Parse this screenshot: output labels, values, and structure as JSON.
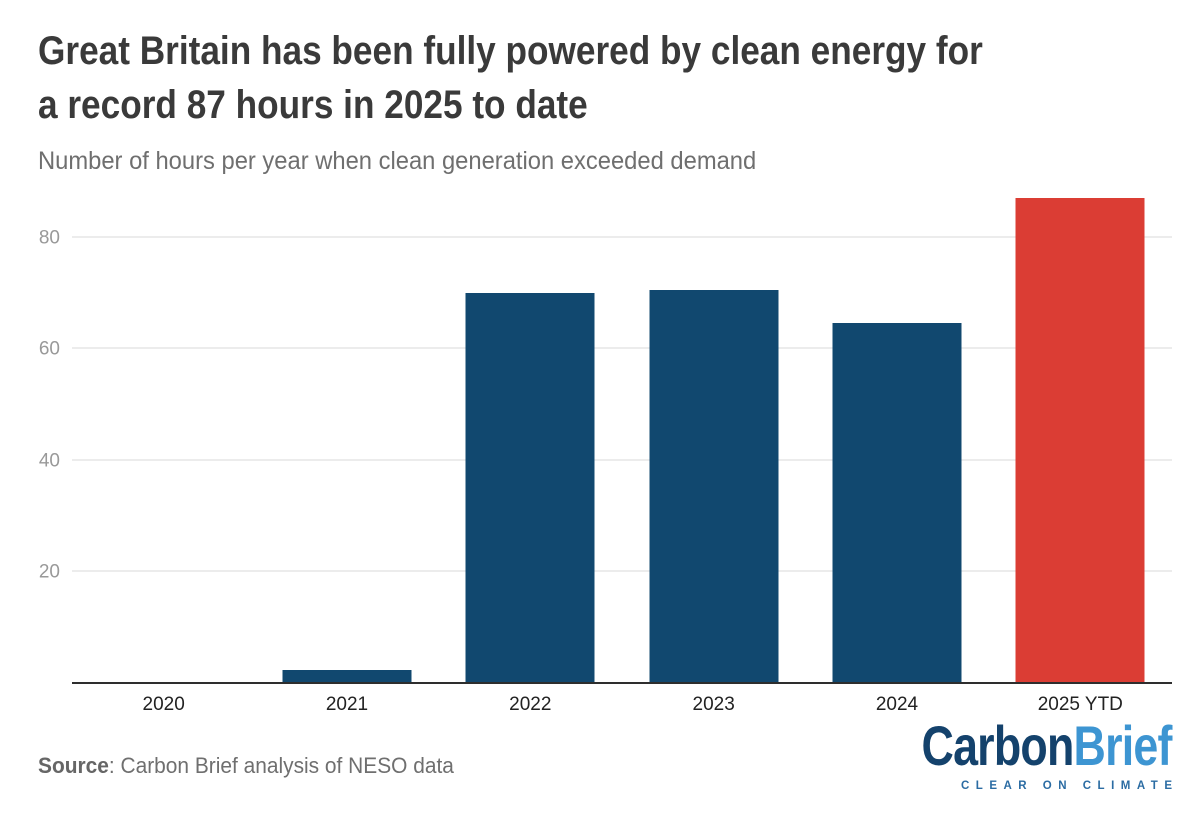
{
  "header": {
    "title_line1": "Great Britain has been fully powered by clean energy for",
    "title_line2": "a record 87 hours in 2025 to date",
    "subtitle": "Number of hours per year when clean generation exceeded demand"
  },
  "chart_data": {
    "type": "bar",
    "title": "Great Britain has been fully powered by clean energy for a record 87 hours in 2025 to date",
    "subtitle": "Number of hours per year when clean generation exceeded demand",
    "categories": [
      "2020",
      "2021",
      "2022",
      "2023",
      "2024",
      "2025 YTD"
    ],
    "values": [
      0,
      2.4,
      70,
      70.5,
      64.5,
      87
    ],
    "unit": "hours",
    "xlabel": "",
    "ylabel": "",
    "ylim": [
      0,
      87.5
    ],
    "yticks": [
      20,
      40,
      60,
      80
    ],
    "grid": "horizontal gridlines at y ticks, no legend",
    "bar_colors": [
      "#11486F",
      "#11486F",
      "#11486F",
      "#11486F",
      "#11486F",
      "#DB3D34"
    ],
    "default_bar_color": "#11486F",
    "highlight_bar_color": "#DB3D34",
    "highlight_category": "2025 YTD",
    "axis_line_color": "#2E2E2E",
    "gridline_color": "#ECECEC",
    "ytick_color": "#999999",
    "xtick_color": "#222222"
  },
  "footer": {
    "source_label": "Source",
    "source_rest": ": Carbon Brief analysis of NESO data",
    "logo": {
      "part1": "Carbon",
      "part2": "Brief",
      "tagline": "CLEAR ON CLIMATE",
      "part1_color": "#14426C",
      "part2_color": "#3D95D2",
      "tagline_color": "#2B6CA3"
    }
  }
}
